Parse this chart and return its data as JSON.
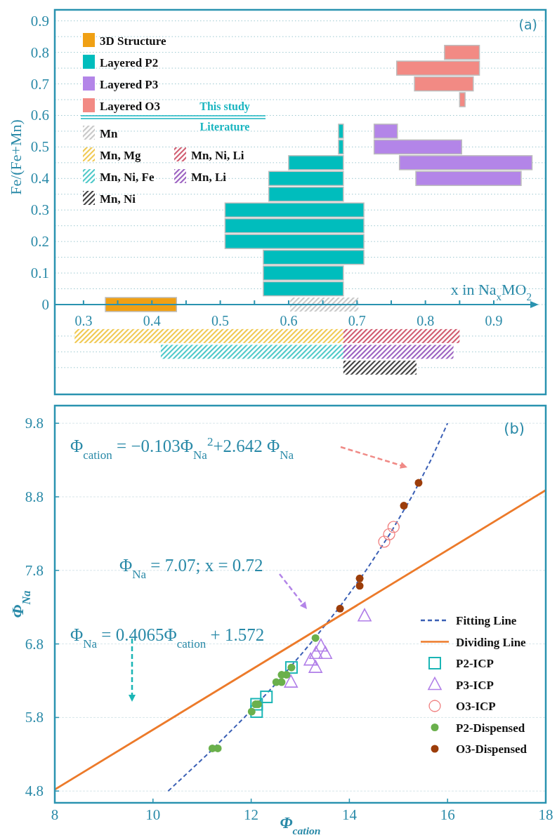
{
  "chart_data": [
    {
      "type": "bar",
      "orientation": "horizontal",
      "xlabel": "x in Na$_{x}$MO$_{2}$",
      "ylabel": "Fe/(Fe+Mn)",
      "xlim": [
        0.258,
        0.976
      ],
      "xticks": [
        0.3,
        {
          "value": 0.35,
          "label": null
        },
        0.4,
        {
          "value": 0.45,
          "label": null
        },
        0.5,
        {
          "value": 0.55,
          "label": null
        },
        0.6,
        {
          "value": 0.65,
          "label": null
        },
        0.7,
        {
          "value": 0.75,
          "label": null
        },
        0.8,
        {
          "value": 0.85,
          "label": null
        },
        0.9
      ],
      "ylim": [
        -0.285,
        0.935
      ],
      "yticks": [
        {
          "value": -0.2,
          "label": null
        },
        {
          "value": -0.15,
          "label": null
        },
        {
          "value": -0.1,
          "label": null
        },
        0,
        {
          "value": 0.05,
          "label": null
        },
        0.1,
        {
          "value": 0.15,
          "label": null
        },
        0.2,
        {
          "value": 0.25,
          "label": null
        },
        0.3,
        {
          "value": 0.35,
          "label": null
        },
        0.4,
        {
          "value": 0.45,
          "label": null
        },
        0.5,
        {
          "value": 0.55,
          "label": null
        },
        0.6,
        {
          "value": 0.65,
          "label": null
        },
        0.7,
        {
          "value": 0.75,
          "label": null
        },
        0.8,
        {
          "value": 0.85,
          "label": null
        },
        0.9
      ],
      "grid": "y",
      "legend": "top left",
      "annotations": [
        "(a)",
        "This study",
        "Literature"
      ],
      "series": [
        {
          "name": "3D Structure",
          "color": "#f0a014",
          "x": [
            0
          ],
          "base": [
            0.332
          ],
          "values": [
            0.104
          ]
        },
        {
          "name": "Layered P2",
          "color": "#00bdbd",
          "x": [
            0.05,
            0.1,
            0.15,
            0.2,
            0.25,
            0.3,
            0.35,
            0.4,
            0.45,
            0.5,
            0.55
          ],
          "base": [
            0.563,
            0.563,
            0.563,
            0.507,
            0.507,
            0.507,
            0.571,
            0.571,
            0.6,
            0.673,
            0.673
          ],
          "values": [
            0.117,
            0.117,
            0.147,
            0.203,
            0.203,
            0.203,
            0.109,
            0.109,
            0.08,
            0.007,
            0.007
          ]
        },
        {
          "name": "Layered P3",
          "color": "#b385e8",
          "x": [
            0.4,
            0.45,
            0.5,
            0.55
          ],
          "base": [
            0.786,
            0.762,
            0.725,
            0.725
          ],
          "values": [
            0.154,
            0.194,
            0.128,
            0.034
          ]
        },
        {
          "name": "Layered O3",
          "color": "#f28a84",
          "x": [
            0.65,
            0.7,
            0.75,
            0.8
          ],
          "base": [
            0.85,
            0.784,
            0.758,
            0.828
          ],
          "values": [
            0.008,
            0.086,
            0.121,
            0.051
          ]
        },
        {
          "name": "Mn",
          "color": "#c8c8c8",
          "x": [
            0
          ],
          "base": [
            0.602
          ],
          "values": [
            0.1
          ]
        },
        {
          "name": "Mn, Mg",
          "color": "#f0c850",
          "x": [
            -0.1
          ],
          "base": [
            0.287
          ],
          "values": [
            0.393
          ]
        },
        {
          "name": "Mn, Ni, Li",
          "color": "#d05a6e",
          "x": [
            -0.1
          ],
          "base": [
            0.68
          ],
          "values": [
            0.17
          ]
        },
        {
          "name": "Mn, Ni, Fe",
          "color": "#4cc8c8",
          "x": [
            -0.15
          ],
          "base": [
            0.413
          ],
          "values": [
            0.267
          ]
        },
        {
          "name": "Mn, Li",
          "color": "#9a5fc0",
          "x": [
            -0.15
          ],
          "base": [
            0.68
          ],
          "values": [
            0.161
          ]
        },
        {
          "name": "Mn, Ni",
          "color": "#404040",
          "x": [
            -0.2
          ],
          "base": [
            0.68
          ],
          "values": [
            0.107
          ]
        }
      ]
    },
    {
      "type": "scatter",
      "xlabel": "Φ$_{cation}$",
      "ylabel": "Φ$_{Na}$",
      "xlim": [
        8,
        18
      ],
      "xticks": [
        8,
        10,
        12,
        14,
        16,
        18
      ],
      "ylim": [
        4.64,
        10.04
      ],
      "yticks": [
        4.8,
        5.8,
        6.8,
        7.8,
        8.8,
        9.8
      ],
      "grid": "y",
      "legend": "bottom right",
      "annotations": [
        "(b)",
        "Φ$_{cation}$ = −0.103Φ$_{Na}$$^{2}$+2.642 Φ$_{Na}$",
        "Φ$_{Na}$ = 7.07; x = 0.72",
        "Φ$_{Na}$ = 0.4065Φ$_{cation}$ + 1.572"
      ],
      "series": [
        {
          "name": "Fitting Line",
          "type": "line",
          "line_style": "dashed",
          "color": "#3a5fb5",
          "x": [
            10.31,
            11.11,
            11.86,
            12.56,
            13.2,
            13.8,
            14.34,
            14.83,
            15.27,
            15.66,
            16.0
          ],
          "values": [
            4.8,
            5.3,
            5.8,
            6.3,
            6.8,
            7.3,
            7.8,
            8.3,
            8.8,
            9.3,
            9.8
          ]
        },
        {
          "name": "Dividing Line",
          "type": "line",
          "line_style": "solid",
          "color": "#ec7a2a",
          "x": [
            8,
            18
          ],
          "values": [
            4.82,
            8.89
          ]
        },
        {
          "name": "P2-ICP",
          "marker": "square",
          "color": "#1ab5b5",
          "x": [
            12.82,
            12.31,
            12.11,
            12.11
          ],
          "values": [
            6.48,
            6.08,
            5.98,
            5.88
          ]
        },
        {
          "name": "P3-ICP",
          "marker": "triangle",
          "color": "#b07ee8",
          "x": [
            14.31,
            13.42,
            13.32,
            13.51,
            13.21,
            13.31,
            12.81
          ],
          "values": [
            7.18,
            6.77,
            6.67,
            6.67,
            6.58,
            6.48,
            6.28
          ]
        },
        {
          "name": "O3-ICP",
          "marker": "circle",
          "color": "#f08080",
          "x": [
            14.9,
            14.81,
            14.71
          ],
          "values": [
            8.39,
            8.29,
            8.19
          ]
        },
        {
          "name": "P2-Dispensed",
          "color": "#6ab04c",
          "x": [
            13.31,
            12.82,
            12.72,
            12.62,
            12.62,
            12.51,
            12.14,
            12.09,
            12.01,
            11.21,
            11.32
          ],
          "values": [
            6.88,
            6.48,
            6.38,
            6.38,
            6.28,
            6.28,
            5.98,
            5.98,
            5.88,
            5.38,
            5.38
          ]
        },
        {
          "name": "O3-Dispensed",
          "color": "#9c3d0a",
          "x": [
            13.81,
            14.21,
            14.21,
            15.41,
            15.11
          ],
          "values": [
            7.28,
            7.69,
            7.59,
            8.99,
            8.68
          ]
        }
      ]
    }
  ]
}
